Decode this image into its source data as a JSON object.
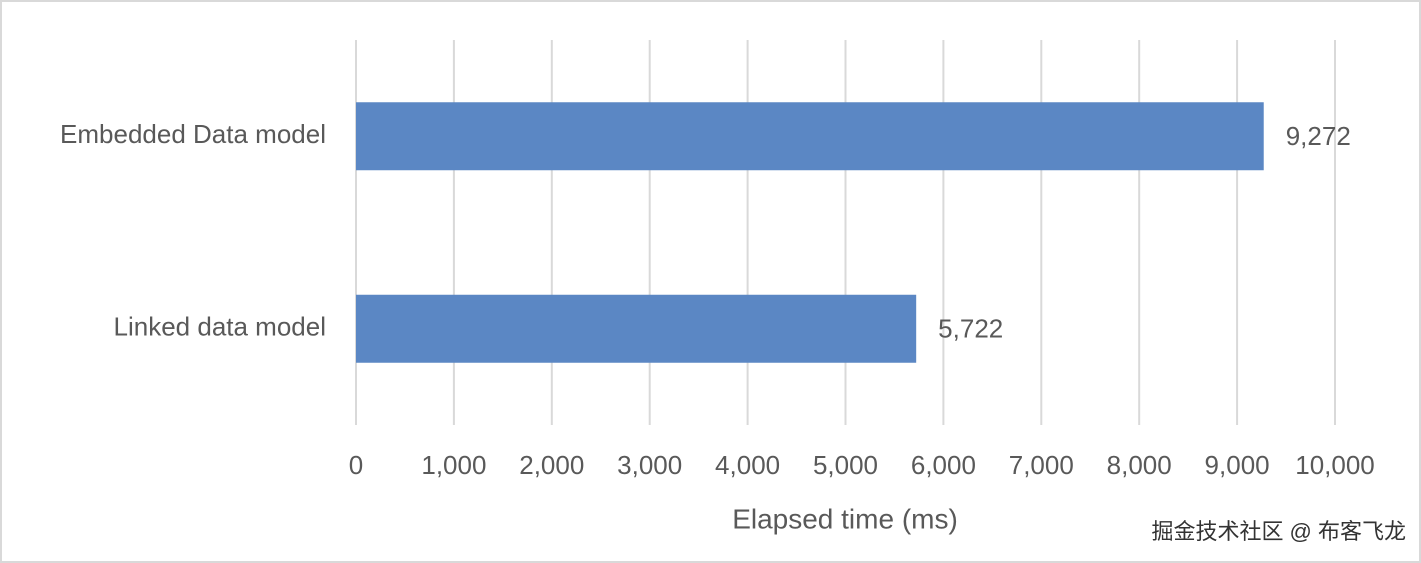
{
  "chart_data": {
    "type": "bar",
    "orientation": "horizontal",
    "categories": [
      "Embedded Data model",
      "Linked data model"
    ],
    "values": [
      9272,
      5722
    ],
    "value_labels": [
      "9,272",
      "5,722"
    ],
    "color": "#5b87c4",
    "xlabel": "Elapsed time (ms)",
    "xlim": [
      0,
      10000
    ],
    "xticks": [
      0,
      {
        "value": 1000,
        "label": "1,000"
      },
      {
        "value": 2000,
        "label": "2,000"
      },
      {
        "value": 3000,
        "label": "3,000"
      },
      {
        "value": 4000,
        "label": "4,000"
      },
      {
        "value": 5000,
        "label": "5,000"
      },
      {
        "value": 6000,
        "label": "6,000"
      },
      {
        "value": 7000,
        "label": "7,000"
      },
      {
        "value": 8000,
        "label": "8,000"
      },
      {
        "value": 9000,
        "label": "9,000"
      },
      {
        "value": 10000,
        "label": "10,000"
      }
    ],
    "grid": true
  },
  "watermark": "掘金技术社区 @ 布客飞龙"
}
